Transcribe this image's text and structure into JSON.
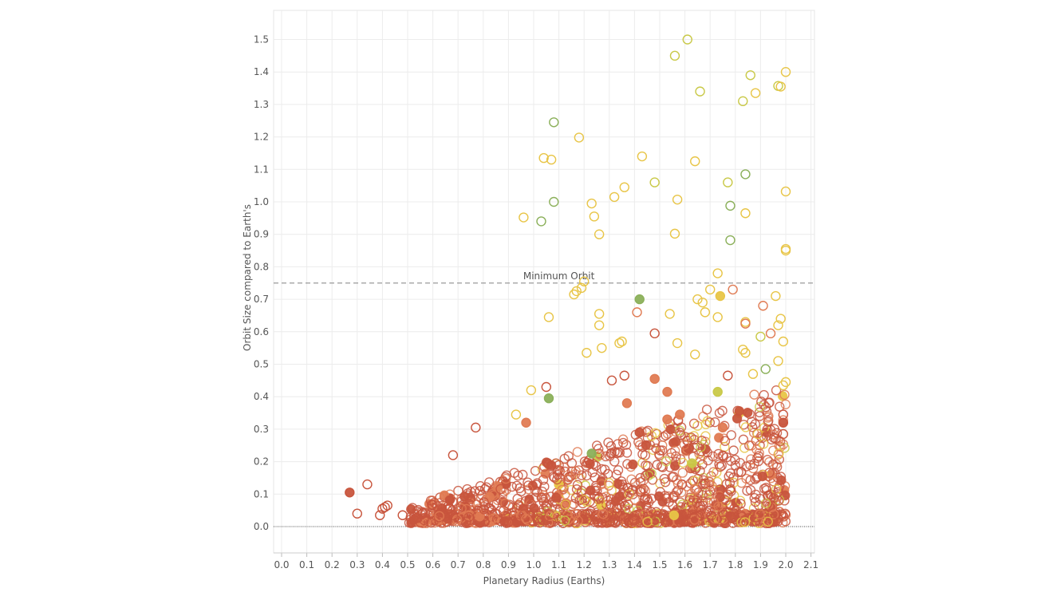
{
  "chart_data": {
    "type": "scatter",
    "xlabel": "Planetary Radius (Earths)",
    "ylabel": "Orbit Size compared to Earth's",
    "xlim": [
      -0.05,
      2.12
    ],
    "ylim": [
      -0.08,
      1.52
    ],
    "x_ticks": [
      "0.0",
      "0.1",
      "0.2",
      "0.3",
      "0.4",
      "0.5",
      "0.6",
      "0.7",
      "0.8",
      "0.9",
      "1.0",
      "1.1",
      "1.2",
      "1.3",
      "1.4",
      "1.5",
      "1.6",
      "1.7",
      "1.8",
      "1.9",
      "2.0",
      "2.1"
    ],
    "y_ticks": [
      "0.0",
      "0.1",
      "0.2",
      "0.3",
      "0.4",
      "0.5",
      "0.6",
      "0.7",
      "0.8",
      "0.9",
      "1.0",
      "1.1",
      "1.2",
      "1.3",
      "1.4",
      "1.5"
    ],
    "grid": true,
    "reference_line": {
      "label": "Minimum Orbit",
      "y": 0.75,
      "style": "dashed"
    },
    "zero_line": {
      "y": 0.0,
      "style": "dotted"
    },
    "colors": {
      "red": "#c8553d",
      "orange": "#e07b53",
      "yellow": "#e8c547",
      "yellow_green": "#c9c948",
      "green": "#8bb05a",
      "grid": "#ececec",
      "reference": "#999999"
    },
    "highlighted_points": [
      {
        "x": 1.08,
        "y": 1.245,
        "color": "green",
        "filled": false
      },
      {
        "x": 1.08,
        "y": 1.0,
        "color": "green",
        "filled": false
      },
      {
        "x": 1.03,
        "y": 0.94,
        "color": "green",
        "filled": false
      },
      {
        "x": 1.04,
        "y": 1.135,
        "color": "yellow",
        "filled": false
      },
      {
        "x": 1.07,
        "y": 1.13,
        "color": "yellow",
        "filled": false
      },
      {
        "x": 1.18,
        "y": 1.198,
        "color": "yellow",
        "filled": false
      },
      {
        "x": 0.96,
        "y": 0.952,
        "color": "yellow",
        "filled": false
      },
      {
        "x": 1.23,
        "y": 0.995,
        "color": "yellow",
        "filled": false
      },
      {
        "x": 1.24,
        "y": 0.955,
        "color": "yellow",
        "filled": false
      },
      {
        "x": 1.26,
        "y": 0.9,
        "color": "yellow",
        "filled": false
      },
      {
        "x": 1.32,
        "y": 1.015,
        "color": "yellow",
        "filled": false
      },
      {
        "x": 1.36,
        "y": 1.045,
        "color": "yellow",
        "filled": false
      },
      {
        "x": 1.43,
        "y": 1.14,
        "color": "yellow",
        "filled": false
      },
      {
        "x": 1.48,
        "y": 1.06,
        "color": "yellow_green",
        "filled": false
      },
      {
        "x": 1.56,
        "y": 1.45,
        "color": "yellow_green",
        "filled": false
      },
      {
        "x": 1.61,
        "y": 1.5,
        "color": "yellow_green",
        "filled": false
      },
      {
        "x": 1.57,
        "y": 1.007,
        "color": "yellow",
        "filled": false
      },
      {
        "x": 1.56,
        "y": 0.902,
        "color": "yellow",
        "filled": false
      },
      {
        "x": 1.64,
        "y": 1.125,
        "color": "yellow",
        "filled": false
      },
      {
        "x": 1.66,
        "y": 1.34,
        "color": "yellow_green",
        "filled": false
      },
      {
        "x": 1.77,
        "y": 1.06,
        "color": "yellow_green",
        "filled": false
      },
      {
        "x": 1.78,
        "y": 0.988,
        "color": "green",
        "filled": false
      },
      {
        "x": 1.78,
        "y": 0.882,
        "color": "green",
        "filled": false
      },
      {
        "x": 1.83,
        "y": 1.31,
        "color": "yellow_green",
        "filled": false
      },
      {
        "x": 1.84,
        "y": 1.085,
        "color": "green",
        "filled": false
      },
      {
        "x": 1.84,
        "y": 0.965,
        "color": "yellow",
        "filled": false
      },
      {
        "x": 1.86,
        "y": 1.39,
        "color": "yellow_green",
        "filled": false
      },
      {
        "x": 1.88,
        "y": 1.335,
        "color": "yellow",
        "filled": false
      },
      {
        "x": 1.97,
        "y": 1.357,
        "color": "yellow_green",
        "filled": false
      },
      {
        "x": 1.98,
        "y": 1.355,
        "color": "yellow",
        "filled": false
      },
      {
        "x": 2.0,
        "y": 1.4,
        "color": "yellow",
        "filled": false
      },
      {
        "x": 2.0,
        "y": 1.032,
        "color": "yellow",
        "filled": false
      },
      {
        "x": 2.0,
        "y": 0.855,
        "color": "yellow",
        "filled": false
      },
      {
        "x": 2.0,
        "y": 0.85,
        "color": "yellow",
        "filled": false
      },
      {
        "x": 1.42,
        "y": 0.7,
        "color": "green",
        "filled": true
      },
      {
        "x": 1.06,
        "y": 0.395,
        "color": "green",
        "filled": true
      },
      {
        "x": 1.74,
        "y": 0.71,
        "color": "yellow",
        "filled": true
      },
      {
        "x": 1.73,
        "y": 0.415,
        "color": "yellow_green",
        "filled": true
      },
      {
        "x": 1.23,
        "y": 0.225,
        "color": "green",
        "filled": true
      },
      {
        "x": 1.92,
        "y": 0.485,
        "color": "green",
        "filled": false
      },
      {
        "x": 1.9,
        "y": 0.585,
        "color": "yellow_green",
        "filled": false
      },
      {
        "x": 1.2,
        "y": 0.755,
        "color": "yellow",
        "filled": false
      },
      {
        "x": 1.19,
        "y": 0.735,
        "color": "yellow",
        "filled": false
      },
      {
        "x": 1.17,
        "y": 0.725,
        "color": "yellow",
        "filled": false
      },
      {
        "x": 1.16,
        "y": 0.715,
        "color": "yellow",
        "filled": false
      },
      {
        "x": 1.06,
        "y": 0.645,
        "color": "yellow",
        "filled": false
      },
      {
        "x": 1.26,
        "y": 0.655,
        "color": "yellow",
        "filled": false
      },
      {
        "x": 1.26,
        "y": 0.62,
        "color": "yellow",
        "filled": false
      },
      {
        "x": 1.21,
        "y": 0.535,
        "color": "yellow",
        "filled": false
      },
      {
        "x": 1.27,
        "y": 0.55,
        "color": "yellow",
        "filled": false
      },
      {
        "x": 1.34,
        "y": 0.565,
        "color": "yellow",
        "filled": false
      },
      {
        "x": 1.35,
        "y": 0.57,
        "color": "yellow",
        "filled": false
      },
      {
        "x": 1.41,
        "y": 0.66,
        "color": "orange",
        "filled": false
      },
      {
        "x": 1.48,
        "y": 0.595,
        "color": "red",
        "filled": false
      },
      {
        "x": 1.54,
        "y": 0.655,
        "color": "yellow",
        "filled": false
      },
      {
        "x": 1.57,
        "y": 0.565,
        "color": "yellow",
        "filled": false
      },
      {
        "x": 1.64,
        "y": 0.53,
        "color": "yellow",
        "filled": false
      },
      {
        "x": 1.65,
        "y": 0.7,
        "color": "yellow",
        "filled": false
      },
      {
        "x": 1.67,
        "y": 0.69,
        "color": "yellow",
        "filled": false
      },
      {
        "x": 1.7,
        "y": 0.73,
        "color": "yellow",
        "filled": false
      },
      {
        "x": 1.73,
        "y": 0.78,
        "color": "yellow",
        "filled": false
      },
      {
        "x": 1.68,
        "y": 0.66,
        "color": "yellow",
        "filled": false
      },
      {
        "x": 1.73,
        "y": 0.645,
        "color": "yellow",
        "filled": false
      },
      {
        "x": 1.79,
        "y": 0.73,
        "color": "orange",
        "filled": false
      },
      {
        "x": 1.84,
        "y": 0.63,
        "color": "yellow",
        "filled": false
      },
      {
        "x": 1.84,
        "y": 0.625,
        "color": "orange",
        "filled": false
      },
      {
        "x": 1.83,
        "y": 0.545,
        "color": "yellow",
        "filled": false
      },
      {
        "x": 1.84,
        "y": 0.535,
        "color": "yellow",
        "filled": false
      },
      {
        "x": 1.87,
        "y": 0.47,
        "color": "yellow",
        "filled": false
      },
      {
        "x": 1.91,
        "y": 0.68,
        "color": "orange",
        "filled": false
      },
      {
        "x": 1.94,
        "y": 0.595,
        "color": "orange",
        "filled": false
      },
      {
        "x": 1.96,
        "y": 0.71,
        "color": "yellow",
        "filled": false
      },
      {
        "x": 1.97,
        "y": 0.62,
        "color": "yellow",
        "filled": false
      },
      {
        "x": 1.98,
        "y": 0.64,
        "color": "yellow",
        "filled": false
      },
      {
        "x": 1.99,
        "y": 0.57,
        "color": "yellow",
        "filled": false
      },
      {
        "x": 1.97,
        "y": 0.51,
        "color": "yellow",
        "filled": false
      },
      {
        "x": 2.0,
        "y": 0.445,
        "color": "yellow",
        "filled": false
      },
      {
        "x": 1.99,
        "y": 0.435,
        "color": "yellow",
        "filled": false
      },
      {
        "x": 0.27,
        "y": 0.105,
        "color": "red",
        "filled": true
      },
      {
        "x": 0.34,
        "y": 0.13,
        "color": "red",
        "filled": false
      },
      {
        "x": 0.3,
        "y": 0.04,
        "color": "red",
        "filled": false
      },
      {
        "x": 0.39,
        "y": 0.035,
        "color": "red",
        "filled": false
      },
      {
        "x": 0.4,
        "y": 0.055,
        "color": "red",
        "filled": false
      },
      {
        "x": 0.41,
        "y": 0.06,
        "color": "red",
        "filled": false
      },
      {
        "x": 0.42,
        "y": 0.065,
        "color": "red",
        "filled": false
      },
      {
        "x": 0.48,
        "y": 0.035,
        "color": "red",
        "filled": false
      },
      {
        "x": 0.68,
        "y": 0.22,
        "color": "red",
        "filled": false
      },
      {
        "x": 0.77,
        "y": 0.305,
        "color": "red",
        "filled": false
      },
      {
        "x": 0.93,
        "y": 0.345,
        "color": "yellow",
        "filled": false
      },
      {
        "x": 0.99,
        "y": 0.42,
        "color": "yellow",
        "filled": false
      },
      {
        "x": 1.05,
        "y": 0.43,
        "color": "red",
        "filled": false
      },
      {
        "x": 0.97,
        "y": 0.32,
        "color": "orange",
        "filled": true
      },
      {
        "x": 1.31,
        "y": 0.45,
        "color": "red",
        "filled": false
      },
      {
        "x": 1.36,
        "y": 0.465,
        "color": "red",
        "filled": false
      },
      {
        "x": 1.48,
        "y": 0.455,
        "color": "orange",
        "filled": true
      },
      {
        "x": 1.53,
        "y": 0.415,
        "color": "orange",
        "filled": true
      },
      {
        "x": 1.37,
        "y": 0.38,
        "color": "orange",
        "filled": true
      },
      {
        "x": 1.42,
        "y": 0.29,
        "color": "red",
        "filled": true
      },
      {
        "x": 1.53,
        "y": 0.33,
        "color": "orange",
        "filled": true
      },
      {
        "x": 1.58,
        "y": 0.345,
        "color": "orange",
        "filled": true
      },
      {
        "x": 1.77,
        "y": 0.465,
        "color": "red",
        "filled": false
      },
      {
        "x": 1.75,
        "y": 0.305,
        "color": "orange",
        "filled": true
      },
      {
        "x": 1.99,
        "y": 0.32,
        "color": "red",
        "filled": true
      },
      {
        "x": 1.99,
        "y": 0.345,
        "color": "red",
        "filled": false
      },
      {
        "x": 1.99,
        "y": 0.285,
        "color": "red",
        "filled": false
      }
    ],
    "cluster": {
      "count": 1500,
      "x_range": [
        0.5,
        2.0
      ],
      "y_range": [
        0.0,
        0.45
      ],
      "note": ""
    }
  }
}
